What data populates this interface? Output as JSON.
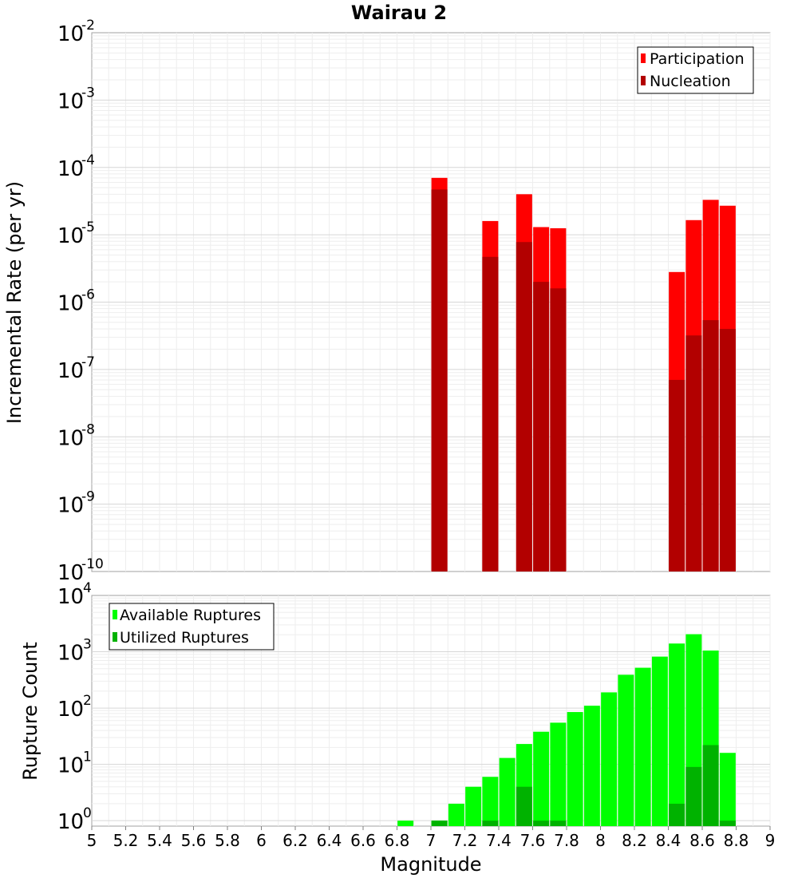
{
  "chart_data": [
    {
      "type": "bar",
      "title": "Wairau 2",
      "ylabel": "Incremental Rate (per yr)",
      "y_scale": "log",
      "ylim": [
        1e-10,
        0.01
      ],
      "xlim": [
        5,
        9
      ],
      "grid": true,
      "legend_position": "top-right",
      "y_tick_bases": [
        "10",
        "10",
        "10",
        "10",
        "10",
        "10",
        "10",
        "10",
        "10"
      ],
      "y_tick_exponents": [
        "-10",
        "-9",
        "-8",
        "-7",
        "-6",
        "-5",
        "-4",
        "-3",
        "-2"
      ],
      "series": [
        {
          "name": "Participation",
          "color": "#ff0000",
          "x": [
            7.05,
            7.35,
            7.55,
            7.65,
            7.75,
            8.45,
            8.55,
            8.65,
            8.75
          ],
          "values": [
            7e-05,
            1.6e-05,
            4e-05,
            1.3e-05,
            1.25e-05,
            2.8e-06,
            1.65e-05,
            3.3e-05,
            2.7e-05
          ]
        },
        {
          "name": "Nucleation",
          "color": "#b20000",
          "x": [
            7.05,
            7.35,
            7.55,
            7.65,
            7.75,
            8.45,
            8.55,
            8.65,
            8.75
          ],
          "values": [
            4.7e-05,
            4.7e-06,
            7.8e-06,
            2e-06,
            1.6e-06,
            7e-08,
            3.2e-07,
            5.4e-07,
            4e-07
          ]
        }
      ]
    },
    {
      "type": "bar",
      "title": "",
      "xlabel": "Magnitude",
      "ylabel": "Rupture Count",
      "y_scale": "log",
      "ylim": [
        0.8,
        10000.0
      ],
      "xlim": [
        5,
        9
      ],
      "grid": true,
      "legend_position": "top-left",
      "x_tick_labels": [
        "5",
        "5.2",
        "5.4",
        "5.6",
        "5.8",
        "6",
        "6.2",
        "6.4",
        "6.6",
        "6.8",
        "7",
        "7.2",
        "7.4",
        "7.6",
        "7.8",
        "8",
        "8.2",
        "8.4",
        "8.6",
        "8.8",
        "9"
      ],
      "y_tick_bases": [
        "10",
        "10",
        "10",
        "10",
        "10"
      ],
      "y_tick_exponents": [
        "0",
        "1",
        "2",
        "3",
        "4"
      ],
      "series": [
        {
          "name": "Available Ruptures",
          "color": "#00ff00",
          "x": [
            6.85,
            7.05,
            7.15,
            7.25,
            7.35,
            7.45,
            7.55,
            7.65,
            7.75,
            7.85,
            7.95,
            8.05,
            8.15,
            8.25,
            8.35,
            8.45,
            8.55,
            8.65,
            8.75
          ],
          "values": [
            1,
            1,
            2,
            4,
            6,
            13,
            23,
            38,
            55,
            85,
            110,
            190,
            390,
            520,
            820,
            1400,
            2050,
            1050,
            16
          ]
        },
        {
          "name": "Utilized Ruptures",
          "color": "#00b200",
          "x": [
            7.05,
            7.35,
            7.55,
            7.65,
            7.75,
            8.45,
            8.55,
            8.65,
            8.75
          ],
          "values": [
            1,
            1,
            4,
            1,
            1,
            2,
            9,
            22,
            1
          ]
        }
      ]
    }
  ]
}
